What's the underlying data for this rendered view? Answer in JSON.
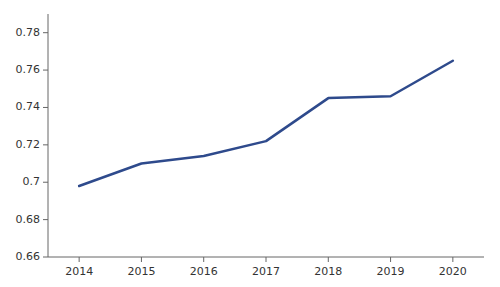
{
  "chart_data": {
    "type": "line",
    "x": [
      2014,
      2015,
      2016,
      2017,
      2018,
      2019,
      2020
    ],
    "values": [
      0.698,
      0.71,
      0.714,
      0.722,
      0.745,
      0.746,
      0.765
    ],
    "color": "#2E4A8C",
    "xlim": [
      2013.5,
      2020.5
    ],
    "ylim": [
      0.66,
      0.79
    ],
    "xticks": [
      2014,
      2015,
      2016,
      2017,
      2018,
      2019,
      2020
    ],
    "yticks": [
      0.66,
      0.68,
      0.7,
      0.72,
      0.74,
      0.76,
      0.78
    ],
    "grid": false
  }
}
